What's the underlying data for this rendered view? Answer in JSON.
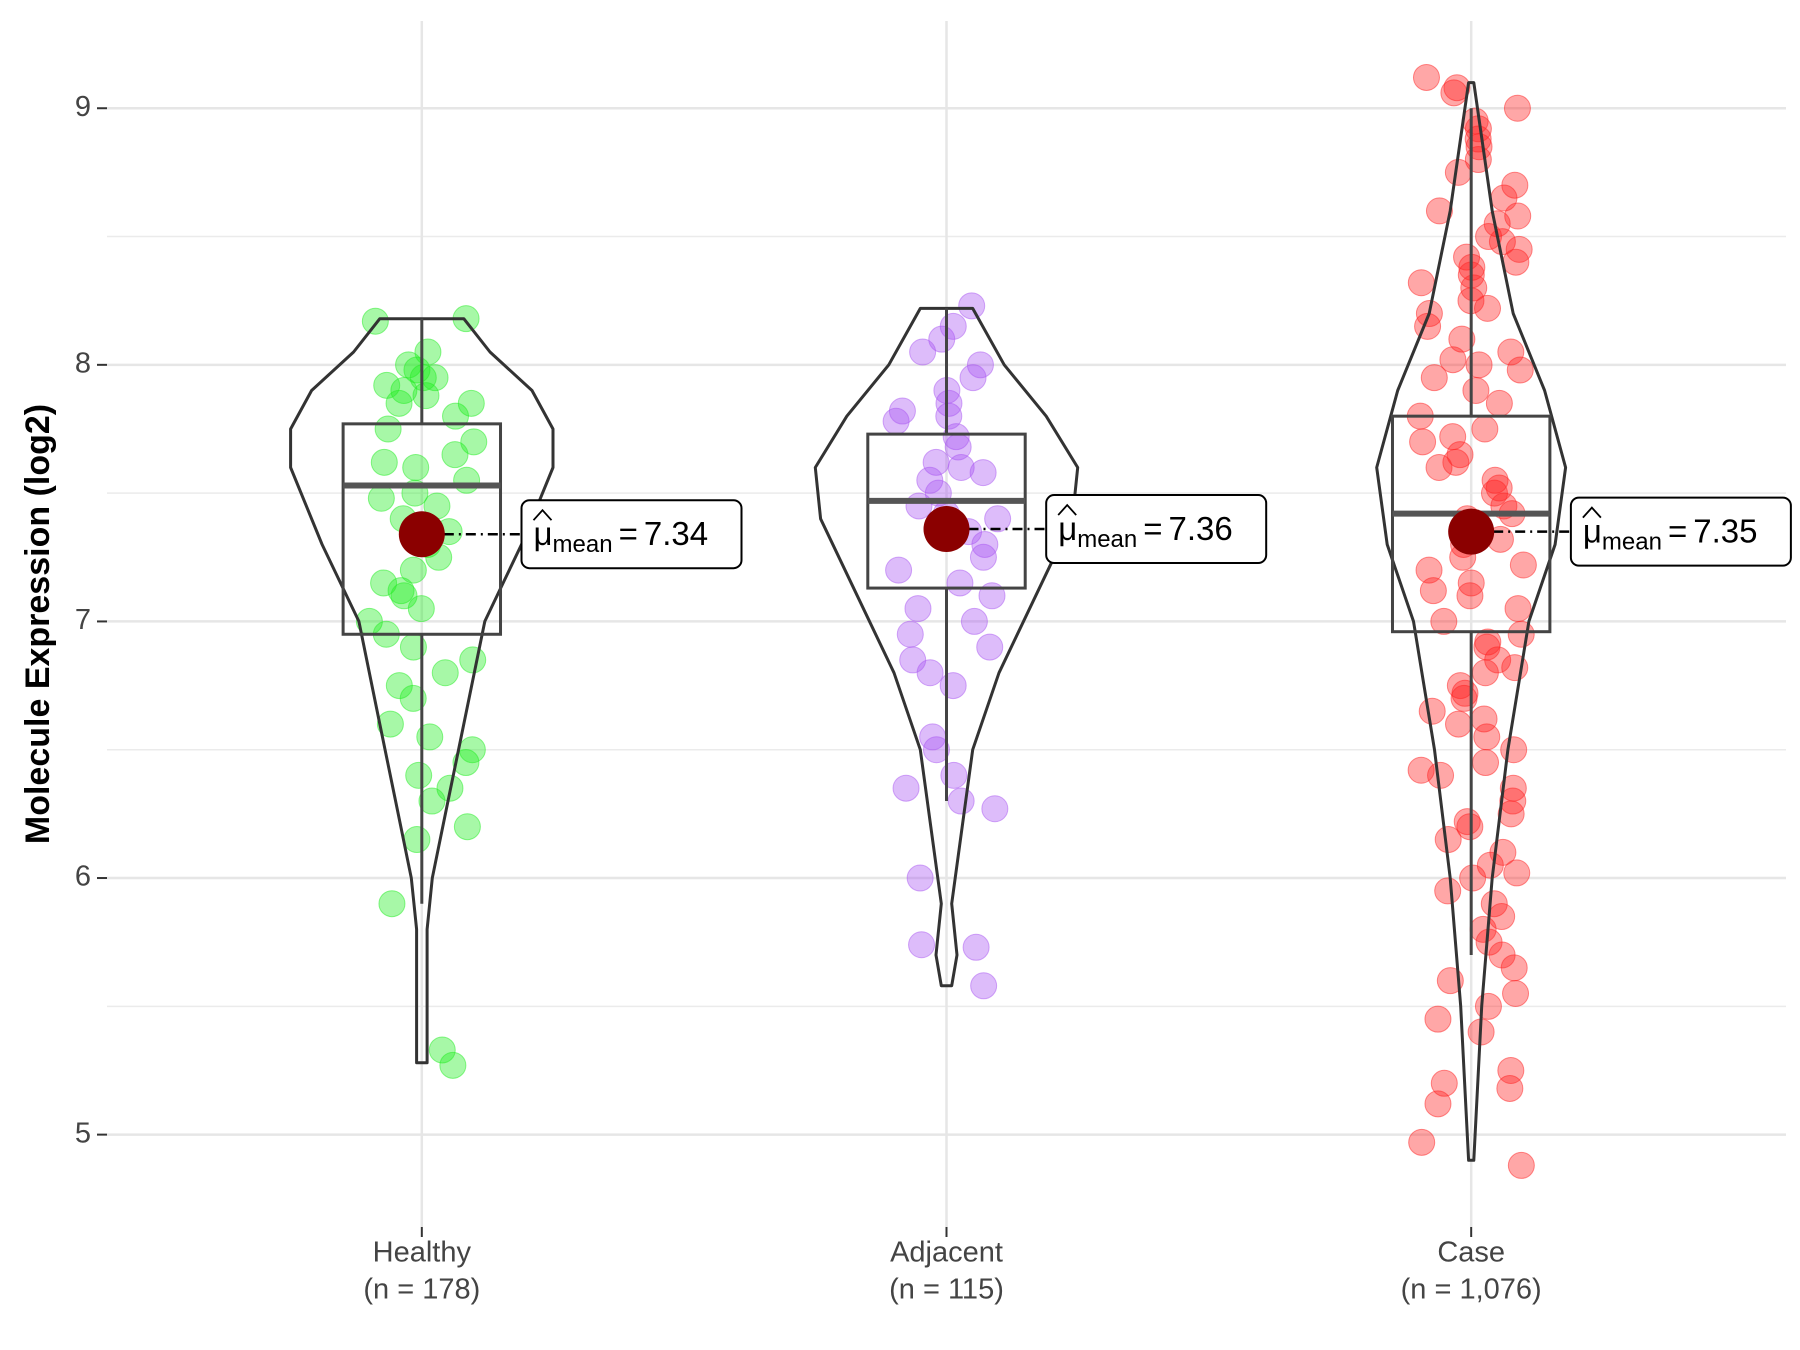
{
  "chart_data": {
    "type": "violin-box",
    "y_label": "Molecule Expression (log2)",
    "categories": [
      "Healthy",
      "Adjacent",
      "Case"
    ],
    "n_labels": [
      "(n = 178)",
      "(n = 115)",
      "(n = 1,076)"
    ],
    "colors": [
      "#22ee22",
      "#a957f2",
      "#ff2222"
    ],
    "ylim": [
      4.64,
      9.34
    ],
    "yticks": [
      5,
      6,
      7,
      8,
      9
    ],
    "minor_yticks": [
      5.5,
      6.5,
      7.5,
      8.5
    ],
    "grid": true,
    "mean_symbol": "μ",
    "mean_subscript": "mean",
    "mean_equals": "=",
    "means": [
      7.34,
      7.36,
      7.35
    ],
    "boxes": [
      {
        "whisker_low": 5.9,
        "q1": 6.95,
        "median": 7.53,
        "q3": 7.77,
        "whisker_high": 8.18
      },
      {
        "whisker_low": 6.3,
        "q1": 7.13,
        "median": 7.47,
        "q3": 7.73,
        "whisker_high": 8.22
      },
      {
        "whisker_low": 5.7,
        "q1": 6.96,
        "median": 7.42,
        "q3": 7.8,
        "whisker_high": 9.0
      }
    ],
    "violins": [
      {
        "y": [
          5.28,
          5.8,
          6.0,
          6.3,
          6.6,
          7.0,
          7.3,
          7.6,
          7.75,
          7.9,
          8.05,
          8.18
        ],
        "half_width": [
          0.01,
          0.01,
          0.02,
          0.05,
          0.08,
          0.12,
          0.19,
          0.25,
          0.25,
          0.21,
          0.13,
          0.08
        ]
      },
      {
        "y": [
          5.58,
          5.7,
          5.9,
          6.2,
          6.5,
          6.8,
          7.1,
          7.4,
          7.6,
          7.8,
          8.0,
          8.22
        ],
        "half_width": [
          0.01,
          0.02,
          0.01,
          0.03,
          0.05,
          0.1,
          0.17,
          0.24,
          0.25,
          0.19,
          0.11,
          0.05
        ]
      },
      {
        "y": [
          4.9,
          5.5,
          6.0,
          6.5,
          7.0,
          7.3,
          7.6,
          7.9,
          8.2,
          8.6,
          9.1
        ],
        "half_width": [
          0.005,
          0.02,
          0.04,
          0.07,
          0.11,
          0.16,
          0.18,
          0.14,
          0.08,
          0.04,
          0.005
        ]
      }
    ],
    "points": [
      [
        8.18,
        8.17,
        8.05,
        8.0,
        7.98,
        7.95,
        7.92,
        7.9,
        7.88,
        7.85,
        7.8,
        7.75,
        7.7,
        7.65,
        7.6,
        7.55,
        7.5,
        7.45,
        7.4,
        7.35,
        7.3,
        7.25,
        7.2,
        7.15,
        7.1,
        7.05,
        7.0,
        6.95,
        6.9,
        6.85,
        6.8,
        6.75,
        6.7,
        6.6,
        6.55,
        6.5,
        6.45,
        6.4,
        6.35,
        6.3,
        6.2,
        6.15,
        5.9,
        5.33,
        5.27,
        7.85,
        7.95,
        7.62,
        7.48,
        7.12
      ],
      [
        8.23,
        8.15,
        8.1,
        8.05,
        8.0,
        7.95,
        7.9,
        7.85,
        7.8,
        7.78,
        7.72,
        7.68,
        7.62,
        7.58,
        7.55,
        7.5,
        7.45,
        7.4,
        7.35,
        7.3,
        7.25,
        7.2,
        7.15,
        7.1,
        7.05,
        7.0,
        6.95,
        6.9,
        6.85,
        6.8,
        6.75,
        6.55,
        6.5,
        6.4,
        6.35,
        6.3,
        6.27,
        6.0,
        5.74,
        5.73,
        5.58,
        7.6,
        7.82,
        7.42
      ],
      [
        9.12,
        9.08,
        9.06,
        9.0,
        8.95,
        8.92,
        8.88,
        8.85,
        8.8,
        8.75,
        8.7,
        8.65,
        8.6,
        8.55,
        8.5,
        8.45,
        8.42,
        8.4,
        8.35,
        8.3,
        8.25,
        8.2,
        8.15,
        8.1,
        8.05,
        8.0,
        7.95,
        7.9,
        7.85,
        7.8,
        7.75,
        7.7,
        7.65,
        7.6,
        7.55,
        7.5,
        7.45,
        7.4,
        7.35,
        7.3,
        7.25,
        7.2,
        7.15,
        7.1,
        7.05,
        7.0,
        6.95,
        6.9,
        6.85,
        6.8,
        6.75,
        6.7,
        6.65,
        6.6,
        6.55,
        6.5,
        6.45,
        6.4,
        6.35,
        6.3,
        6.25,
        6.2,
        6.15,
        6.1,
        6.05,
        6.0,
        5.95,
        5.9,
        5.85,
        5.8,
        5.75,
        5.7,
        5.65,
        5.6,
        5.55,
        5.5,
        5.45,
        5.4,
        5.25,
        5.2,
        5.18,
        5.12,
        4.97,
        4.88,
        8.48,
        8.38,
        8.22,
        7.98,
        7.72,
        7.52,
        7.32,
        7.12,
        6.92,
        6.72,
        6.62,
        6.42,
        6.22,
        6.02,
        8.58,
        8.32,
        8.02,
        7.62,
        7.42,
        7.22,
        6.82
      ]
    ]
  }
}
